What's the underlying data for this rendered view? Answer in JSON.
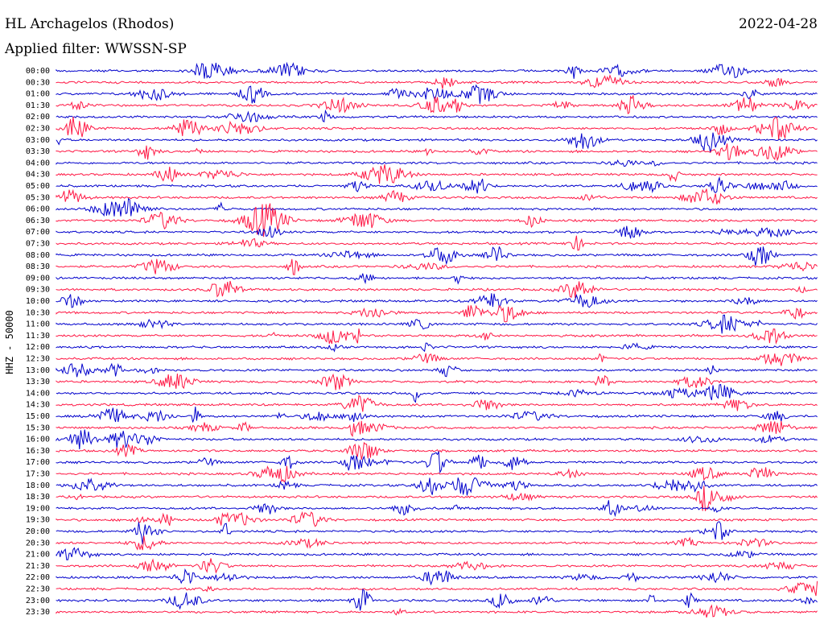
{
  "chart_data": {
    "type": "line",
    "title": "HL Archagelos (Rhodos)",
    "subtitle": "Applied filter: WWSSN-SP",
    "date": "2022-04-28",
    "ylabel": "HHZ - 50000",
    "colors": [
      "#0000cc",
      "#ff1744"
    ],
    "rows": [
      "00:00",
      "00:30",
      "01:00",
      "01:30",
      "02:00",
      "02:30",
      "03:00",
      "03:30",
      "04:00",
      "04:30",
      "05:00",
      "05:30",
      "06:00",
      "06:30",
      "07:00",
      "07:30",
      "08:00",
      "08:30",
      "09:00",
      "09:30",
      "10:00",
      "10:30",
      "11:00",
      "11:30",
      "12:00",
      "12:30",
      "13:00",
      "13:30",
      "14:00",
      "14:30",
      "15:00",
      "15:30",
      "16:00",
      "16:30",
      "17:00",
      "17:30",
      "18:00",
      "18:30",
      "19:00",
      "19:30",
      "20:00",
      "20:30",
      "21:00",
      "21:30",
      "22:00",
      "22:30",
      "23:00",
      "23:30"
    ]
  }
}
